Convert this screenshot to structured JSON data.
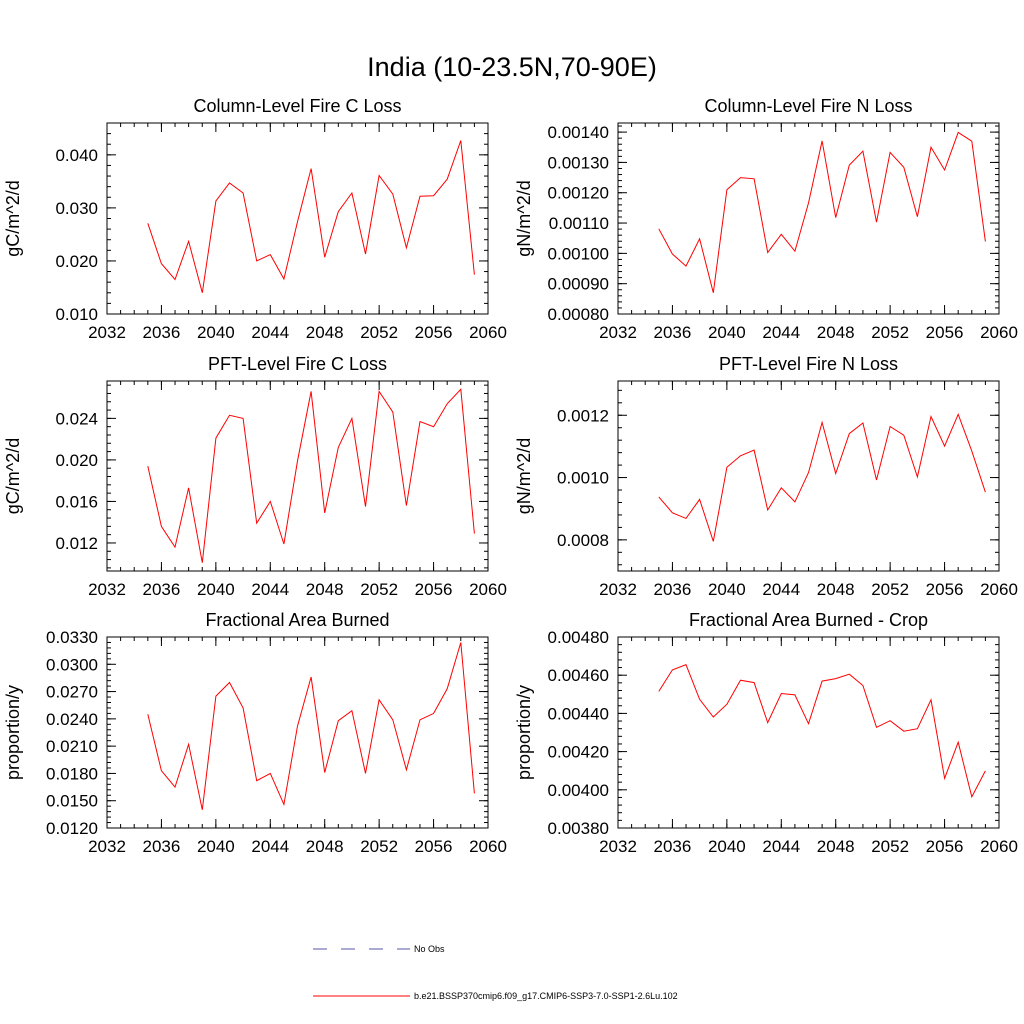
{
  "page": {
    "title": "India (10-23.5N,70-90E)"
  },
  "legend": [
    {
      "label": "No Obs",
      "color": "#5555aa",
      "dash": true
    },
    {
      "label": "b.e21.BSSP370cmip6.f09_g17.CMIP6-SSP3-7.0-SSP1-2.6Lu.102",
      "color": "#ff0000",
      "dash": false
    }
  ],
  "chart_data": [
    {
      "type": "line",
      "title": "Column-Level Fire C Loss",
      "ylabel": "gC/m^2/d",
      "xlim": [
        2032,
        2060
      ],
      "ylim": [
        0.01,
        0.046
      ],
      "xticks": [
        2032,
        2036,
        2040,
        2044,
        2048,
        2052,
        2056,
        2060
      ],
      "yticks": [
        0.01,
        0.02,
        0.03,
        0.04
      ],
      "ytick_labels": [
        "0.010",
        "0.020",
        "0.030",
        "0.040"
      ],
      "series": [
        {
          "color": "#ff0000",
          "x": [
            2035,
            2036,
            2037,
            2038,
            2039,
            2040,
            2041,
            2042,
            2043,
            2044,
            2045,
            2046,
            2047,
            2048,
            2049,
            2050,
            2051,
            2052,
            2053,
            2054,
            2055,
            2056,
            2057,
            2058,
            2059
          ],
          "y": [
            0.0271,
            0.0195,
            0.0165,
            0.0237,
            0.014,
            0.0313,
            0.0347,
            0.0328,
            0.02,
            0.0212,
            0.0166,
            0.0274,
            0.0374,
            0.0207,
            0.0293,
            0.0328,
            0.0213,
            0.0361,
            0.0326,
            0.0225,
            0.0322,
            0.0323,
            0.0354,
            0.0427,
            0.0174
          ]
        }
      ]
    },
    {
      "type": "line",
      "title": "Column-Level Fire N Loss",
      "ylabel": "gN/m^2/d",
      "xlim": [
        2032,
        2060
      ],
      "ylim": [
        0.0008,
        0.00143
      ],
      "xticks": [
        2032,
        2036,
        2040,
        2044,
        2048,
        2052,
        2056,
        2060
      ],
      "yticks": [
        0.0008,
        0.0009,
        0.001,
        0.0011,
        0.0012,
        0.0013,
        0.0014
      ],
      "ytick_labels": [
        "0.00080",
        "0.00090",
        "0.00100",
        "0.00110",
        "0.00120",
        "0.00130",
        "0.00140"
      ],
      "series": [
        {
          "color": "#ff0000",
          "x": [
            2035,
            2036,
            2037,
            2038,
            2039,
            2040,
            2041,
            2042,
            2043,
            2044,
            2045,
            2046,
            2047,
            2048,
            2049,
            2050,
            2051,
            2052,
            2053,
            2054,
            2055,
            2056,
            2057,
            2058,
            2059
          ],
          "y": [
            0.001081,
            0.000998,
            0.000958,
            0.001048,
            0.00087,
            0.00121,
            0.00125,
            0.001246,
            0.001003,
            0.001063,
            0.001007,
            0.001166,
            0.001371,
            0.001118,
            0.001291,
            0.001337,
            0.001103,
            0.001333,
            0.001284,
            0.001121,
            0.00135,
            0.001275,
            0.001399,
            0.00137,
            0.001039
          ]
        }
      ]
    },
    {
      "type": "line",
      "title": "PFT-Level Fire C Loss",
      "ylabel": "gC/m^2/d",
      "xlim": [
        2032,
        2060
      ],
      "ylim": [
        0.0093,
        0.0276
      ],
      "xticks": [
        2032,
        2036,
        2040,
        2044,
        2048,
        2052,
        2056,
        2060
      ],
      "yticks": [
        0.012,
        0.016,
        0.02,
        0.024
      ],
      "ytick_labels": [
        "0.012",
        "0.016",
        "0.020",
        "0.024"
      ],
      "series": [
        {
          "color": "#ff0000",
          "x": [
            2035,
            2036,
            2037,
            2038,
            2039,
            2040,
            2041,
            2042,
            2043,
            2044,
            2045,
            2046,
            2047,
            2048,
            2049,
            2050,
            2051,
            2052,
            2053,
            2054,
            2055,
            2056,
            2057,
            2058,
            2059
          ],
          "y": [
            0.0194,
            0.0136,
            0.0116,
            0.0173,
            0.0101,
            0.0221,
            0.0243,
            0.024,
            0.0139,
            0.016,
            0.0119,
            0.0199,
            0.0266,
            0.0149,
            0.0212,
            0.024,
            0.0155,
            0.0266,
            0.0246,
            0.0156,
            0.0237,
            0.0232,
            0.0254,
            0.0268,
            0.0129
          ]
        }
      ]
    },
    {
      "type": "line",
      "title": "PFT-Level Fire N Loss",
      "ylabel": "gN/m^2/d",
      "xlim": [
        2032,
        2060
      ],
      "ylim": [
        0.0007,
        0.00131
      ],
      "xticks": [
        2032,
        2036,
        2040,
        2044,
        2048,
        2052,
        2056,
        2060
      ],
      "yticks": [
        0.0008,
        0.001,
        0.0012
      ],
      "ytick_labels": [
        "0.0008",
        "0.0010",
        "0.0012"
      ],
      "series": [
        {
          "color": "#ff0000",
          "x": [
            2035,
            2036,
            2037,
            2038,
            2039,
            2040,
            2041,
            2042,
            2043,
            2044,
            2045,
            2046,
            2047,
            2048,
            2049,
            2050,
            2051,
            2052,
            2053,
            2054,
            2055,
            2056,
            2057,
            2058,
            2059
          ],
          "y": [
            0.000938,
            0.000887,
            0.000869,
            0.00093,
            0.000795,
            0.001033,
            0.00107,
            0.001088,
            0.000896,
            0.000967,
            0.000922,
            0.001016,
            0.001177,
            0.001013,
            0.001141,
            0.001175,
            0.000992,
            0.001164,
            0.001136,
            0.001002,
            0.001196,
            0.001101,
            0.001203,
            0.001085,
            0.000953
          ]
        }
      ]
    },
    {
      "type": "line",
      "title": "Fractional Area Burned",
      "ylabel": "proportion/y",
      "xlim": [
        2032,
        2060
      ],
      "ylim": [
        0.012,
        0.033
      ],
      "xticks": [
        2032,
        2036,
        2040,
        2044,
        2048,
        2052,
        2056,
        2060
      ],
      "yticks": [
        0.012,
        0.015,
        0.018,
        0.021,
        0.024,
        0.027,
        0.03,
        0.033
      ],
      "ytick_labels": [
        "0.0120",
        "0.0150",
        "0.0180",
        "0.0210",
        "0.0240",
        "0.0270",
        "0.0300",
        "0.0330"
      ],
      "series": [
        {
          "color": "#ff0000",
          "x": [
            2035,
            2036,
            2037,
            2038,
            2039,
            2040,
            2041,
            2042,
            2043,
            2044,
            2045,
            2046,
            2047,
            2048,
            2049,
            2050,
            2051,
            2052,
            2053,
            2054,
            2055,
            2056,
            2057,
            2058,
            2059
          ],
          "y": [
            0.0245,
            0.0183,
            0.0165,
            0.0212,
            0.014,
            0.0265,
            0.028,
            0.0252,
            0.0172,
            0.018,
            0.0146,
            0.0232,
            0.0286,
            0.0181,
            0.0238,
            0.0249,
            0.018,
            0.0261,
            0.0239,
            0.0184,
            0.0239,
            0.0246,
            0.0273,
            0.0324,
            0.0158
          ]
        }
      ]
    },
    {
      "type": "line",
      "title": "Fractional Area Burned - Crop",
      "ylabel": "proportion/y",
      "xlim": [
        2032,
        2060
      ],
      "ylim": [
        0.0038,
        0.0048
      ],
      "xticks": [
        2032,
        2036,
        2040,
        2044,
        2048,
        2052,
        2056,
        2060
      ],
      "yticks": [
        0.0038,
        0.004,
        0.0042,
        0.0044,
        0.0046,
        0.0048
      ],
      "ytick_labels": [
        "0.00380",
        "0.00400",
        "0.00420",
        "0.00440",
        "0.00460",
        "0.00480"
      ],
      "series": [
        {
          "color": "#ff0000",
          "x": [
            2035,
            2036,
            2037,
            2038,
            2039,
            2040,
            2041,
            2042,
            2043,
            2044,
            2045,
            2046,
            2047,
            2048,
            2049,
            2050,
            2051,
            2052,
            2053,
            2054,
            2055,
            2056,
            2057,
            2058,
            2059
          ],
          "y": [
            0.004515,
            0.004628,
            0.004655,
            0.004474,
            0.004381,
            0.004448,
            0.004574,
            0.004561,
            0.004352,
            0.004504,
            0.004497,
            0.004346,
            0.004569,
            0.004582,
            0.004605,
            0.004546,
            0.004327,
            0.004362,
            0.004307,
            0.00432,
            0.004471,
            0.00406,
            0.004249,
            0.003963,
            0.004099
          ]
        }
      ]
    }
  ]
}
